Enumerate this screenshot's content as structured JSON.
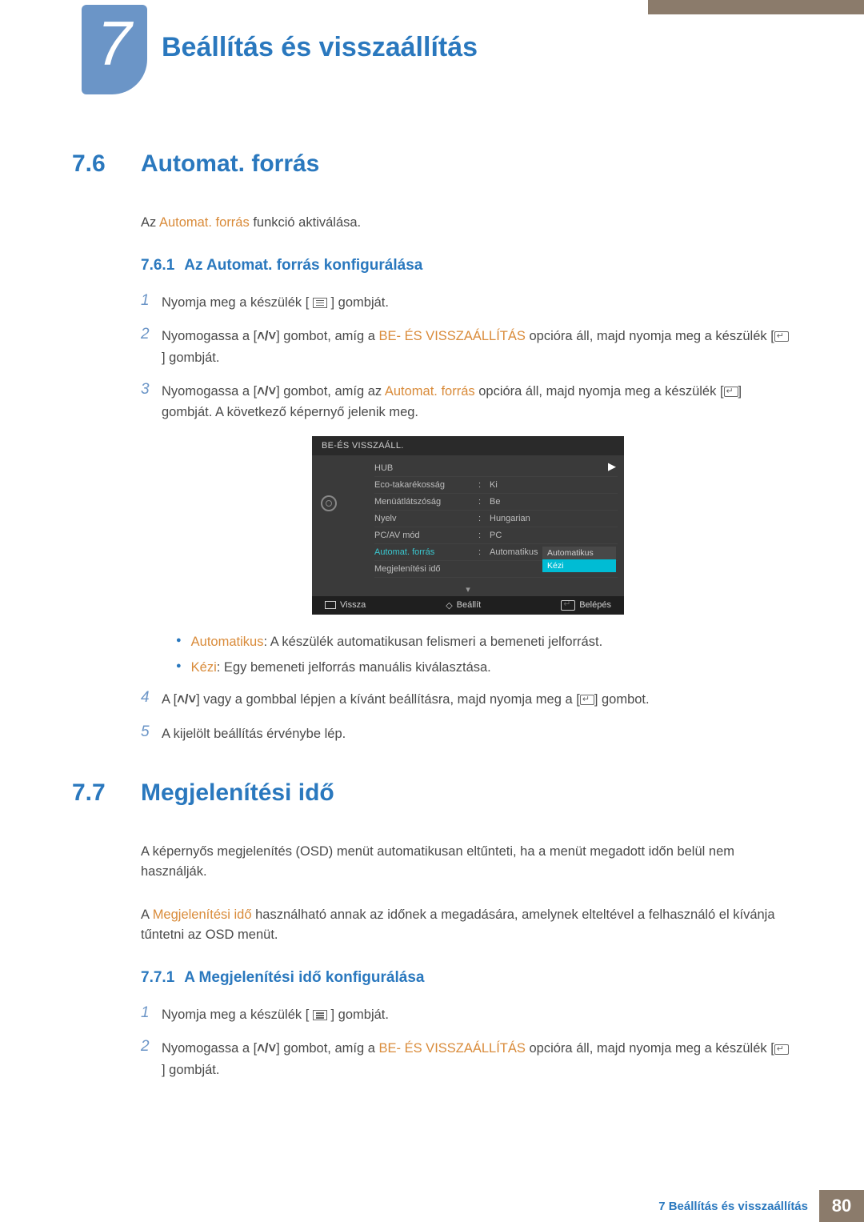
{
  "chapter": {
    "number": "7",
    "title": "Beállítás és visszaállítás"
  },
  "s76": {
    "num": "7.6",
    "title": "Automat. forrás",
    "intro_pre": "Az ",
    "intro_emph": "Automat. forrás",
    "intro_post": " funkció aktiválása.",
    "sub": {
      "num": "7.6.1",
      "title": "Az Automat. forrás konfigurálása"
    },
    "step1": "Nyomja meg a készülék [",
    "step1b": "] gombját.",
    "step2a": "Nyomogassa a [",
    "step2b": "] gombot, amíg a ",
    "step2emph": "BE- ÉS VISSZAÁLLÍTÁS",
    "step2c": " opcióra áll, majd nyomja meg a készülék [",
    "step2d": "] gombját.",
    "step3a": "Nyomogassa a [",
    "step3b": "] gombot, amíg az ",
    "step3emph": "Automat. forrás",
    "step3c": " opcióra áll, majd nyomja meg a készülék [",
    "step3d": "] gombját. A következő képernyő jelenik meg.",
    "b1k": "Automatikus",
    "b1v": ": A készülék automatikusan felismeri a bemeneti jelforrást.",
    "b2k": "Kézi",
    "b2v": ": Egy bemeneti jelforrás manuális kiválasztása.",
    "step4a": "A [",
    "step4b": "] vagy a gombbal lépjen a kívánt beállításra, majd nyomja meg a [",
    "step4c": "] gombot.",
    "step5": "A kijelölt beállítás érvénybe lép."
  },
  "osd": {
    "title": "BE-ÉS VISSZAÁLL.",
    "rows": [
      {
        "k": "HUB",
        "v": ""
      },
      {
        "k": "Eco-takarékosság",
        "v": "Ki"
      },
      {
        "k": "Menüátlátszóság",
        "v": "Be"
      },
      {
        "k": "Nyelv",
        "v": "Hungarian"
      },
      {
        "k": "PC/AV mód",
        "v": "PC"
      },
      {
        "k": "Automat. forrás",
        "v": "Automatikus",
        "hl": true
      },
      {
        "k": "Megjelenítési idő",
        "v": ""
      }
    ],
    "opts": [
      "Automatikus",
      "Kézi"
    ],
    "footer": {
      "back": "Vissza",
      "set": "Beállít",
      "enter": "Belépés"
    }
  },
  "s77": {
    "num": "7.7",
    "title": "Megjelenítési idő",
    "p1": "A képernyős megjelenítés (OSD) menüt automatikusan eltűnteti, ha a menüt megadott időn belül nem használják.",
    "p2a": "A ",
    "p2emph": "Megjelenítési idő",
    "p2b": " használható annak az időnek a megadására, amelynek elteltével a felhasználó el kívánja tűntetni az OSD menüt.",
    "sub": {
      "num": "7.7.1",
      "title": "A Megjelenítési idő konfigurálása"
    },
    "step1": "Nyomja meg a készülék [",
    "step1b": "] gombját.",
    "step2a": "Nyomogassa a [",
    "step2b": "] gombot, amíg a ",
    "step2emph": "BE- ÉS VISSZAÁLLÍTÁS",
    "step2c": " opcióra áll, majd nyomja meg a készülék [",
    "step2d": "] gombját."
  },
  "footer": {
    "label": "7 Beállítás és visszaállítás",
    "page": "80"
  },
  "colors": {
    "heading": "#2a78be",
    "emph": "#d98b3a",
    "badge": "#6b95c7",
    "osd_bg": "#3a3a3a",
    "brown": "#8b7b6b",
    "teal": "#00bcd4"
  }
}
